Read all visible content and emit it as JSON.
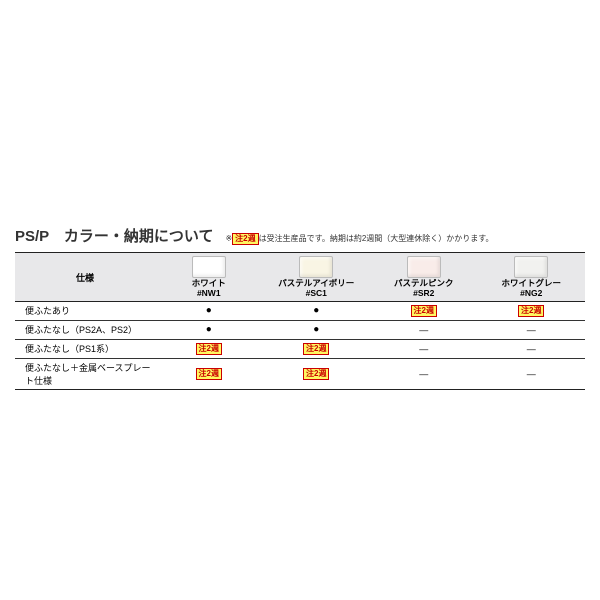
{
  "title": "PS/P　カラー・納期について",
  "note_prefix": "※",
  "notice_label": "注2週",
  "note_text": "は受注生産品です。納期は約2週間（大型連休除く）かかります。",
  "spec_header": "仕様",
  "columns": [
    {
      "name": "ホワイト",
      "code": "#NW1",
      "swatch_color": "#ffffff"
    },
    {
      "name": "パステルアイボリー",
      "code": "#SC1",
      "swatch_color": "#f9f5e4"
    },
    {
      "name": "パステルピンク",
      "code": "#SR2",
      "swatch_color": "#f9ece9"
    },
    {
      "name": "ホワイトグレー",
      "code": "#NG2",
      "swatch_color": "#f1f1ef"
    }
  ],
  "rows": [
    {
      "label": "便ふたあり",
      "cells": [
        "dot",
        "dot",
        "notice",
        "notice"
      ]
    },
    {
      "label": "便ふたなし（PS2A、PS2）",
      "cells": [
        "dot",
        "dot",
        "dash",
        "dash"
      ]
    },
    {
      "label": "便ふたなし（PS1系）",
      "cells": [
        "notice",
        "notice",
        "dash",
        "dash"
      ]
    },
    {
      "label": "便ふたなし＋金属ベースプレート仕様",
      "cells": [
        "notice",
        "notice",
        "dash",
        "dash"
      ]
    }
  ],
  "styles": {
    "background_color": "#ffffff",
    "header_bg": "#e8e8ea",
    "border_color": "#333333",
    "badge_bg": "#fff761",
    "badge_text": "#ca0000",
    "title_fontsize": 15,
    "body_fontsize": 9,
    "note_fontsize": 8
  }
}
